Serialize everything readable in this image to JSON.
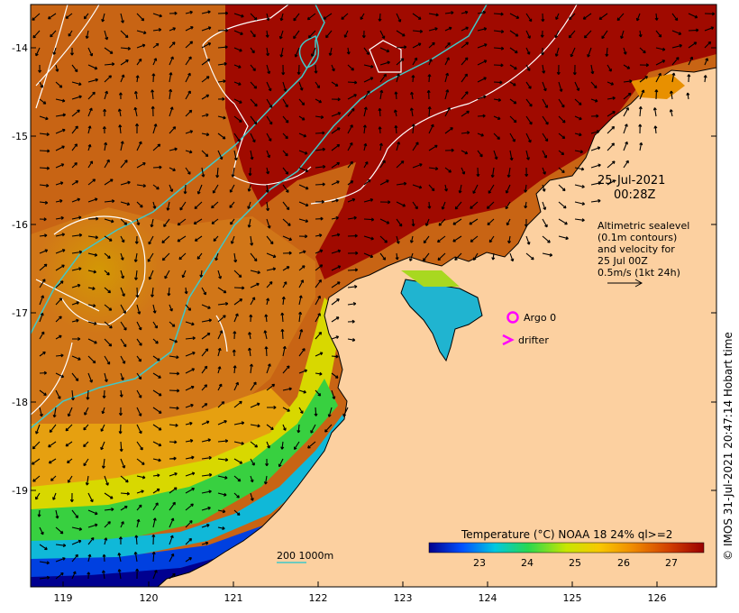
{
  "annotation": {
    "date_line1": "25-Jul-2021",
    "date_line2": "00:28Z",
    "desc_line1": "Altimetric sealevel",
    "desc_line2": "(0.1m contours)",
    "desc_line3": "and velocity for",
    "desc_line4": "25 Jul 00Z",
    "scale_text": "0.5m/s (1kt 24h)"
  },
  "legend": {
    "argo": "Argo 0",
    "drifter": "drifter",
    "isobath": "200  1000m",
    "colorbar_title": "Temperature (°C) NOAA 18 24% ql>=2",
    "colorbar_ticks": [
      "23",
      "24",
      "25",
      "26",
      "27"
    ]
  },
  "credit": "© IMOS 31-Jul-2021 20:47:14 Hobart time",
  "axes": {
    "x_ticks": [
      "119",
      "120",
      "121",
      "122",
      "123",
      "124",
      "125",
      "126"
    ],
    "y_ticks": [
      "-14",
      "-15",
      "-16",
      "-17",
      "-18",
      "-19"
    ]
  },
  "colors": {
    "land": "#fcd0a0",
    "isobath": "#40c8c8",
    "sealevel_contour": "#ffffff",
    "argo": "#ff00ff",
    "drifter": "#ff00ff"
  }
}
